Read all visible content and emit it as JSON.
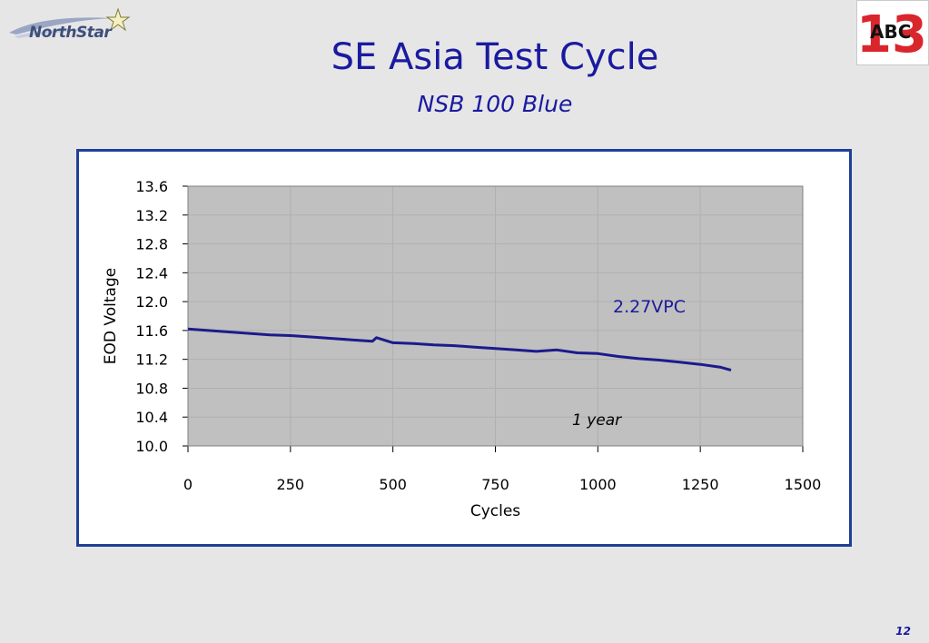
{
  "slide": {
    "title": "SE Asia Test Cycle",
    "subtitle": "NSB 100 Blue",
    "page_number": "12",
    "logo_text": "NorthStar",
    "badge_text": "ABC"
  },
  "colors": {
    "title": "#1a1aa0",
    "frame": "#1f3f98",
    "plot_bg": "#c0c0c0",
    "series": "#1b1b8c",
    "annotation": "#1a1a9a"
  },
  "chart_data": {
    "type": "line",
    "title": "",
    "xlabel": "Cycles",
    "ylabel": "EOD Voltage",
    "xlim": [
      0,
      1500
    ],
    "ylim": [
      10.0,
      13.6
    ],
    "xticks": [
      "0",
      "250",
      "500",
      "750",
      "1000",
      "1250",
      "1500"
    ],
    "yticks": [
      "13.6",
      "13.2",
      "12.8",
      "12.4",
      "12.0",
      "11.6",
      "11.2",
      "10.8",
      "10.4",
      "10.0"
    ],
    "grid": true,
    "legend": "none",
    "series": [
      {
        "x": [
          0,
          50,
          100,
          150,
          200,
          250,
          300,
          350,
          400,
          450,
          460,
          500,
          550,
          600,
          650,
          700,
          750,
          800,
          850,
          900,
          950,
          1000,
          1050,
          1100,
          1150,
          1200,
          1250,
          1300,
          1325
        ],
        "y": [
          11.62,
          11.6,
          11.58,
          11.56,
          11.54,
          11.53,
          11.51,
          11.49,
          11.47,
          11.45,
          11.5,
          11.43,
          11.42,
          11.4,
          11.39,
          11.37,
          11.35,
          11.33,
          11.31,
          11.33,
          11.29,
          11.28,
          11.24,
          11.21,
          11.19,
          11.16,
          11.13,
          11.09,
          11.05
        ]
      }
    ],
    "annotations": [
      "2.27VPC",
      "1 year"
    ]
  }
}
